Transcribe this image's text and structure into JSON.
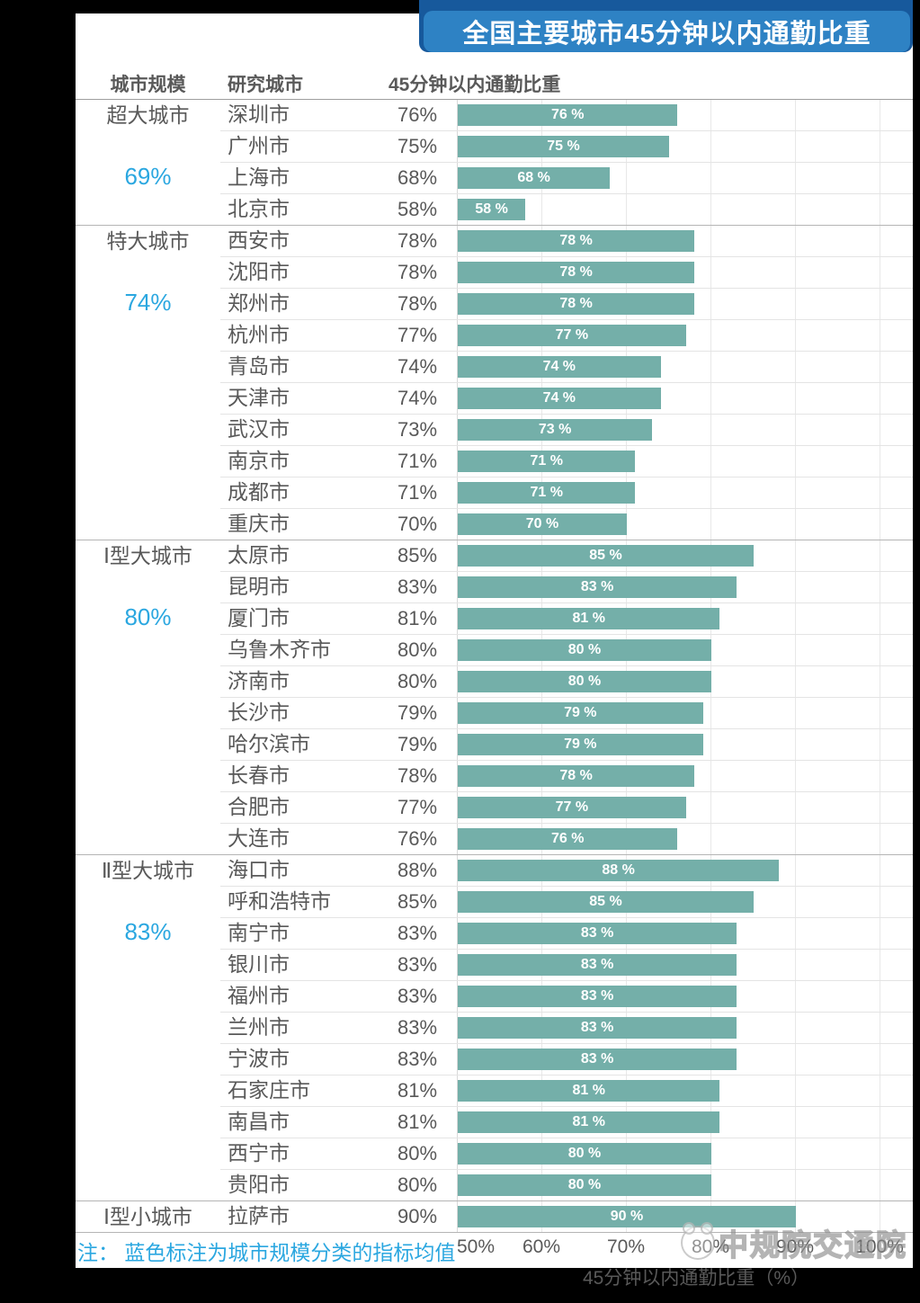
{
  "page": {
    "background_color": "#000000",
    "card_color": "#ffffff"
  },
  "banner": {
    "bg_color": "#2E82C4",
    "shadow_color": "#17599C",
    "text_color": "#ffffff"
  },
  "table": {
    "columns": [
      "城市规模",
      "研究城市",
      "45分钟以内通勤比重"
    ]
  },
  "footer": {
    "note": "注： 蓝色标注为城市规模分类的指标均值",
    "watermark": "中规院交通院"
  },
  "chart_data": {
    "type": "bar",
    "orientation": "horizontal",
    "title": "全国主要城市45分钟以内通勤比重",
    "xlabel": "45分钟以内通勤比重（%）",
    "xlim": [
      50,
      100
    ],
    "xticks": [
      "50%",
      "60%",
      "70%",
      "80%",
      "90%",
      "100%"
    ],
    "grid": true,
    "bar_color": "#74AFA9",
    "bar_label_color": "#ffffff",
    "mean_label_color": "#2BA7E0",
    "groups": [
      {
        "scale": "超大城市",
        "mean": 69,
        "mean_text": "69%",
        "cities": [
          {
            "name": "深圳市",
            "value": 76,
            "value_text": "76%",
            "bar_label": "76 %"
          },
          {
            "name": "广州市",
            "value": 75,
            "value_text": "75%",
            "bar_label": "75 %"
          },
          {
            "name": "上海市",
            "value": 68,
            "value_text": "68%",
            "bar_label": "68 %"
          },
          {
            "name": "北京市",
            "value": 58,
            "value_text": "58%",
            "bar_label": "58 %"
          }
        ]
      },
      {
        "scale": "特大城市",
        "mean": 74,
        "mean_text": "74%",
        "cities": [
          {
            "name": "西安市",
            "value": 78,
            "value_text": "78%",
            "bar_label": "78 %"
          },
          {
            "name": "沈阳市",
            "value": 78,
            "value_text": "78%",
            "bar_label": "78 %"
          },
          {
            "name": "郑州市",
            "value": 78,
            "value_text": "78%",
            "bar_label": "78 %"
          },
          {
            "name": "杭州市",
            "value": 77,
            "value_text": "77%",
            "bar_label": "77 %"
          },
          {
            "name": "青岛市",
            "value": 74,
            "value_text": "74%",
            "bar_label": "74 %"
          },
          {
            "name": "天津市",
            "value": 74,
            "value_text": "74%",
            "bar_label": "74 %"
          },
          {
            "name": "武汉市",
            "value": 73,
            "value_text": "73%",
            "bar_label": "73 %"
          },
          {
            "name": "南京市",
            "value": 71,
            "value_text": "71%",
            "bar_label": "71 %"
          },
          {
            "name": "成都市",
            "value": 71,
            "value_text": "71%",
            "bar_label": "71 %"
          },
          {
            "name": "重庆市",
            "value": 70,
            "value_text": "70%",
            "bar_label": "70 %"
          }
        ]
      },
      {
        "scale": "Ⅰ型大城市",
        "mean": 80,
        "mean_text": "80%",
        "cities": [
          {
            "name": "太原市",
            "value": 85,
            "value_text": "85%",
            "bar_label": "85 %"
          },
          {
            "name": "昆明市",
            "value": 83,
            "value_text": "83%",
            "bar_label": "83 %"
          },
          {
            "name": "厦门市",
            "value": 81,
            "value_text": "81%",
            "bar_label": "81 %"
          },
          {
            "name": "乌鲁木齐市",
            "value": 80,
            "value_text": "80%",
            "bar_label": "80 %"
          },
          {
            "name": "济南市",
            "value": 80,
            "value_text": "80%",
            "bar_label": "80 %"
          },
          {
            "name": "长沙市",
            "value": 79,
            "value_text": "79%",
            "bar_label": "79 %"
          },
          {
            "name": "哈尔滨市",
            "value": 79,
            "value_text": "79%",
            "bar_label": "79 %"
          },
          {
            "name": "长春市",
            "value": 78,
            "value_text": "78%",
            "bar_label": "78 %"
          },
          {
            "name": "合肥市",
            "value": 77,
            "value_text": "77%",
            "bar_label": "77 %"
          },
          {
            "name": "大连市",
            "value": 76,
            "value_text": "76%",
            "bar_label": "76 %"
          }
        ]
      },
      {
        "scale": "Ⅱ型大城市",
        "mean": 83,
        "mean_text": "83%",
        "cities": [
          {
            "name": "海口市",
            "value": 88,
            "value_text": "88%",
            "bar_label": "88 %"
          },
          {
            "name": "呼和浩特市",
            "value": 85,
            "value_text": "85%",
            "bar_label": "85 %"
          },
          {
            "name": "南宁市",
            "value": 83,
            "value_text": "83%",
            "bar_label": "83 %"
          },
          {
            "name": "银川市",
            "value": 83,
            "value_text": "83%",
            "bar_label": "83 %"
          },
          {
            "name": "福州市",
            "value": 83,
            "value_text": "83%",
            "bar_label": "83 %"
          },
          {
            "name": "兰州市",
            "value": 83,
            "value_text": "83%",
            "bar_label": "83 %"
          },
          {
            "name": "宁波市",
            "value": 83,
            "value_text": "83%",
            "bar_label": "83 %"
          },
          {
            "name": "石家庄市",
            "value": 81,
            "value_text": "81%",
            "bar_label": "81 %"
          },
          {
            "name": "南昌市",
            "value": 81,
            "value_text": "81%",
            "bar_label": "81 %"
          },
          {
            "name": "西宁市",
            "value": 80,
            "value_text": "80%",
            "bar_label": "80 %"
          },
          {
            "name": "贵阳市",
            "value": 80,
            "value_text": "80%",
            "bar_label": "80 %"
          }
        ]
      },
      {
        "scale": "Ⅰ型小城市",
        "mean": null,
        "mean_text": null,
        "cities": [
          {
            "name": "拉萨市",
            "value": 90,
            "value_text": "90%",
            "bar_label": "90 %"
          }
        ]
      }
    ]
  }
}
